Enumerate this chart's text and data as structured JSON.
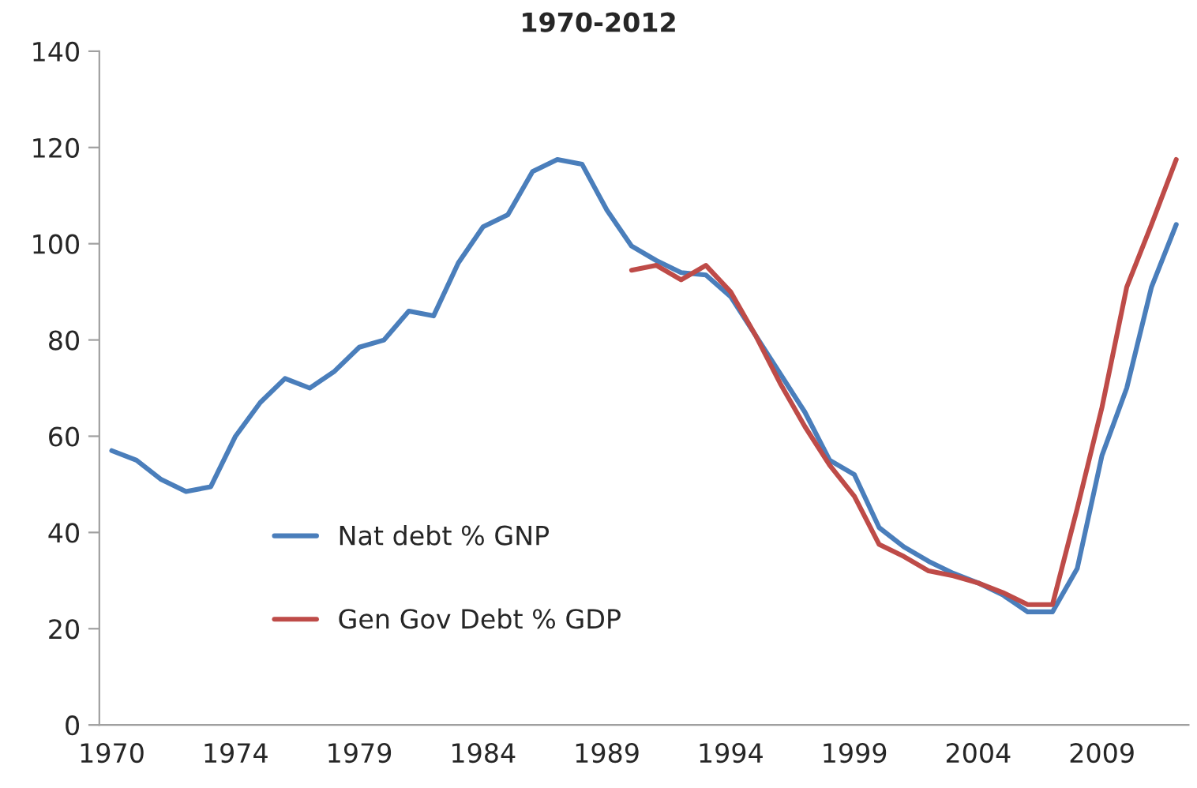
{
  "chart_data": {
    "type": "line",
    "title": "1970-2012",
    "categories": [
      "1970",
      null,
      null,
      null,
      null,
      "1974",
      null,
      null,
      null,
      null,
      "1979",
      null,
      null,
      null,
      null,
      "1984",
      null,
      null,
      null,
      null,
      "1989",
      null,
      null,
      null,
      null,
      "1994",
      null,
      null,
      null,
      null,
      "1999",
      null,
      null,
      null,
      null,
      "2004",
      null,
      null,
      null,
      null,
      "2009",
      null,
      null,
      null
    ],
    "series": [
      {
        "name": "Nat debt % GNP",
        "color": "#4a7ebb",
        "values": [
          57,
          55,
          51,
          48.5,
          49.5,
          60,
          67,
          72,
          70,
          73.5,
          78.5,
          80,
          86,
          85,
          96,
          103.5,
          106,
          115,
          117.5,
          116.5,
          107,
          99.5,
          96.5,
          94,
          93.5,
          89,
          81,
          73,
          65,
          55,
          52,
          41,
          37,
          34,
          31.5,
          29.5,
          27,
          23.5,
          23.5,
          32.5,
          56,
          70,
          91,
          104
        ]
      },
      {
        "name": "Gen Gov Debt % GDP",
        "color": "#be4b48",
        "values": [
          null,
          null,
          null,
          null,
          null,
          null,
          null,
          null,
          null,
          null,
          null,
          null,
          null,
          null,
          null,
          null,
          null,
          null,
          null,
          null,
          null,
          94.5,
          95.5,
          92.5,
          95.5,
          90,
          81,
          71,
          62,
          54,
          47.5,
          37.5,
          35,
          32,
          31,
          29.5,
          27.5,
          25,
          25,
          45,
          66,
          91,
          104,
          117.5
        ]
      }
    ],
    "ylim": [
      0,
      140
    ],
    "yticks": [
      0,
      20,
      40,
      60,
      80,
      100,
      120,
      140
    ],
    "grid": false,
    "legend": "bottom",
    "marker": "none",
    "line_style": "solid"
  }
}
